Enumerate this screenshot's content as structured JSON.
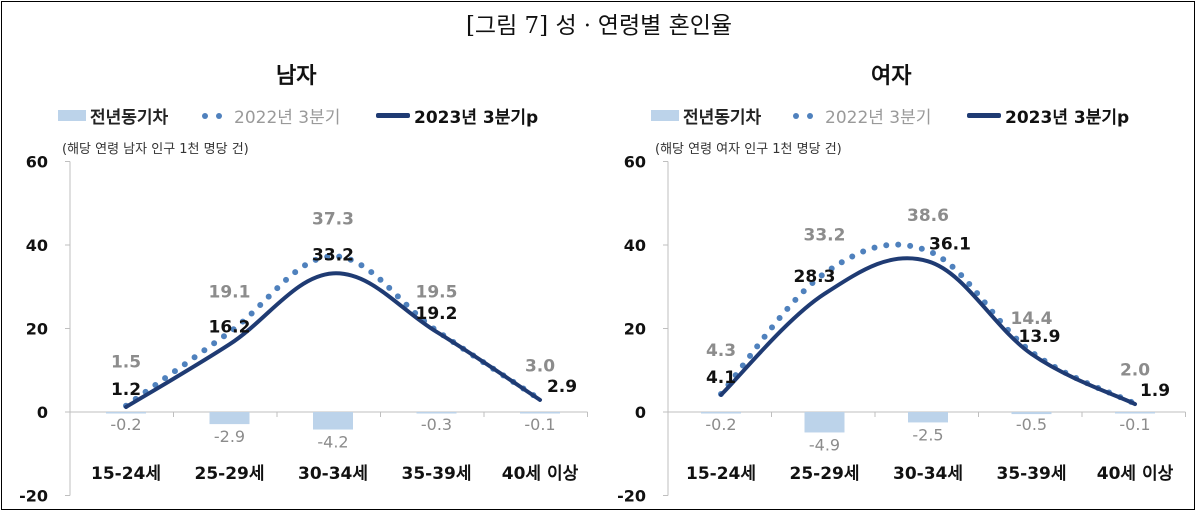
{
  "figure_title": "[그림 7] 성ㆍ연령별 혼인율",
  "colors": {
    "diff_bar": "#bcd3ea",
    "prev_dots": "#4f81bd",
    "curr_line": "#1f3b73",
    "prev_label": "#8c8c8c",
    "curr_label": "#111111",
    "diff_label": "#8c8c8c"
  },
  "panels": [
    {
      "title": "남자",
      "unit_note": "(해당 연령 남자 인구 1천 명당 건)",
      "legend": {
        "bar": "전년동기차",
        "dots": "2022년 3분기",
        "line": "2023년 3분기p"
      }
    },
    {
      "title": "여자",
      "unit_note": "(해당 연령 여자 인구 1천 명당 건)",
      "legend": {
        "bar": "전년동기차",
        "dots": "2022년 3분기",
        "line": "2023년 3분기p"
      }
    }
  ],
  "chart_data": [
    {
      "type": "line",
      "title": "남자",
      "categories": [
        "15-24세",
        "25-29세",
        "30-34세",
        "35-39세",
        "40세 이상"
      ],
      "yticks": [
        "60",
        "40",
        "20",
        "0",
        "-20"
      ],
      "ylim": [
        -20,
        60
      ],
      "series": [
        {
          "name": "전년동기차",
          "type": "bar",
          "values": [
            -0.2,
            -2.9,
            -4.2,
            -0.3,
            -0.1
          ],
          "labels": [
            "-0.2",
            "-2.9",
            "-4.2",
            "-0.3",
            "-0.1"
          ]
        },
        {
          "name": "2022년 3분기",
          "type": "dotted-line",
          "values": [
            1.5,
            19.1,
            37.3,
            19.5,
            3.0
          ],
          "labels": [
            "1.5",
            "19.1",
            "37.3",
            "19.5",
            "3.0"
          ]
        },
        {
          "name": "2023년 3분기p",
          "type": "line",
          "values": [
            1.2,
            16.2,
            33.2,
            19.2,
            2.9
          ],
          "labels": [
            "1.2",
            "16.2",
            "33.2",
            "19.2",
            "2.9"
          ]
        }
      ],
      "grid": false,
      "legend_position": "top-left"
    },
    {
      "type": "line",
      "title": "여자",
      "categories": [
        "15-24세",
        "25-29세",
        "30-34세",
        "35-39세",
        "40세 이상"
      ],
      "yticks": [
        "60",
        "40",
        "20",
        "0",
        "-20"
      ],
      "ylim": [
        -20,
        60
      ],
      "series": [
        {
          "name": "전년동기차",
          "type": "bar",
          "values": [
            -0.2,
            -4.9,
            -2.5,
            -0.5,
            -0.1
          ],
          "labels": [
            "-0.2",
            "-4.9",
            "-2.5",
            "-0.5",
            "-0.1"
          ]
        },
        {
          "name": "2022년 3분기",
          "type": "dotted-line",
          "values": [
            4.3,
            33.2,
            38.6,
            14.4,
            2.0
          ],
          "labels": [
            "4.3",
            "33.2",
            "38.6",
            "14.4",
            "2.0"
          ]
        },
        {
          "name": "2023년 3분기p",
          "type": "line",
          "values": [
            4.1,
            28.3,
            36.1,
            13.9,
            1.9
          ],
          "labels": [
            "4.1",
            "28.3",
            "36.1",
            "13.9",
            "1.9"
          ]
        }
      ],
      "grid": false,
      "legend_position": "top-left"
    }
  ]
}
